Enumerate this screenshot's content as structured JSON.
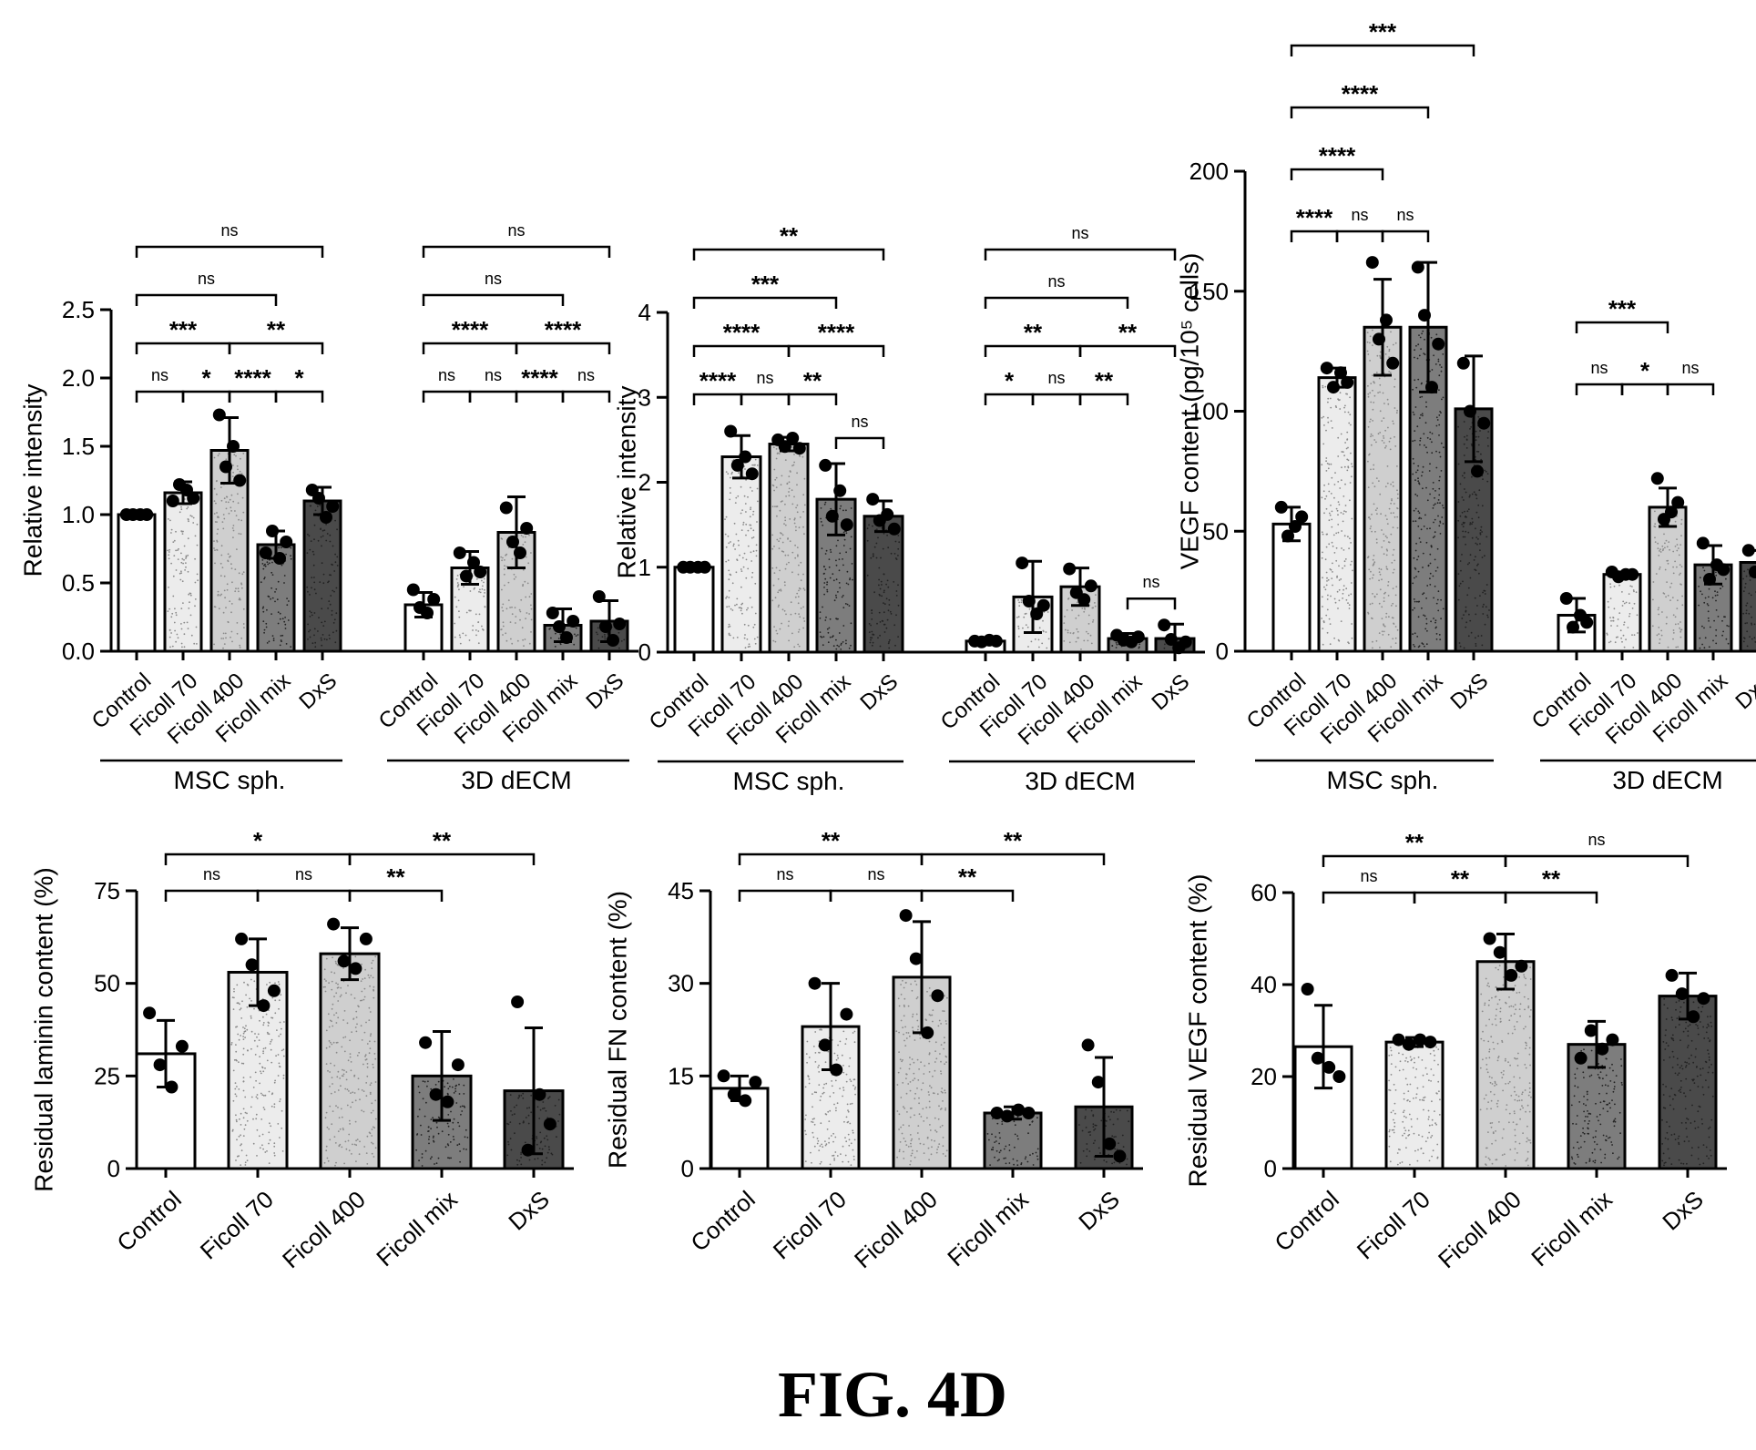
{
  "figure_label": "FIG. 4D",
  "colors": {
    "Control": "#ffffff",
    "Ficoll 70": "#ececec",
    "Ficoll 400": "#cfcfcf",
    "Ficoll mix": "#7d7d7d",
    "DxS": "#4a4a4a",
    "stroke": "#000000"
  },
  "chart_data": [
    {
      "type": "bar",
      "ylabel": "Relative intensity",
      "ylim": [
        0,
        2.5
      ],
      "yticks": [
        "0.0",
        "0.5",
        "1.0",
        "1.5",
        "2.0",
        "2.5"
      ],
      "groups": [
        {
          "label": "MSC sph.",
          "categories": [
            "Control",
            "Ficoll 70",
            "Ficoll 400",
            "Ficoll mix",
            "DxS"
          ],
          "values": [
            1.0,
            1.16,
            1.47,
            0.78,
            1.1
          ],
          "errors": [
            0.0,
            0.08,
            0.24,
            0.1,
            0.1
          ],
          "points": [
            [
              1.0,
              1.0,
              1.0,
              1.0
            ],
            [
              1.1,
              1.22,
              1.18,
              1.12
            ],
            [
              1.73,
              1.35,
              1.5,
              1.25
            ],
            [
              0.72,
              0.88,
              0.68,
              0.8
            ],
            [
              1.18,
              1.12,
              0.98,
              1.06
            ]
          ]
        },
        {
          "label": "3D dECM",
          "categories": [
            "Control",
            "Ficoll 70",
            "Ficoll 400",
            "Ficoll mix",
            "DxS"
          ],
          "values": [
            0.34,
            0.61,
            0.87,
            0.19,
            0.22
          ],
          "errors": [
            0.09,
            0.12,
            0.26,
            0.12,
            0.15
          ],
          "points": [
            [
              0.45,
              0.32,
              0.28,
              0.38
            ],
            [
              0.72,
              0.55,
              0.65,
              0.58
            ],
            [
              1.05,
              0.8,
              0.72,
              0.9
            ],
            [
              0.28,
              0.18,
              0.1,
              0.22
            ],
            [
              0.4,
              0.18,
              0.08,
              0.2
            ]
          ]
        }
      ],
      "brackets": [
        {
          "from": 0,
          "to": 1,
          "label": "ns",
          "level": 0
        },
        {
          "from": 1,
          "to": 2,
          "label": "*",
          "level": 0
        },
        {
          "from": 2,
          "to": 3,
          "label": "****",
          "level": 0
        },
        {
          "from": 3,
          "to": 4,
          "label": "*",
          "level": 0
        },
        {
          "from": 0,
          "to": 2,
          "label": "***",
          "level": 1
        },
        {
          "from": 2,
          "to": 4,
          "label": "**",
          "level": 1
        },
        {
          "from": 0,
          "to": 3,
          "label": "ns",
          "level": 2
        },
        {
          "from": 0,
          "to": 4,
          "label": "ns",
          "level": 3
        },
        {
          "from": 5,
          "to": 6,
          "label": "ns",
          "level": 0
        },
        {
          "from": 6,
          "to": 7,
          "label": "ns",
          "level": 0
        },
        {
          "from": 7,
          "to": 8,
          "label": "****",
          "level": 0
        },
        {
          "from": 8,
          "to": 9,
          "label": "ns",
          "level": 0
        },
        {
          "from": 5,
          "to": 7,
          "label": "****",
          "level": 1
        },
        {
          "from": 7,
          "to": 9,
          "label": "****",
          "level": 1
        },
        {
          "from": 5,
          "to": 8,
          "label": "ns",
          "level": 2
        },
        {
          "from": 5,
          "to": 9,
          "label": "ns",
          "level": 3
        }
      ]
    },
    {
      "type": "bar",
      "ylabel": "Relative intensity",
      "ylim": [
        0,
        4
      ],
      "yticks": [
        "0",
        "1",
        "2",
        "3",
        "4"
      ],
      "groups": [
        {
          "label": "MSC sph.",
          "categories": [
            "Control",
            "Ficoll 70",
            "Ficoll 400",
            "Ficoll mix",
            "DxS"
          ],
          "values": [
            1.0,
            2.3,
            2.45,
            1.8,
            1.6
          ],
          "errors": [
            0.0,
            0.25,
            0.08,
            0.42,
            0.18
          ],
          "points": [
            [
              1.0,
              1.0,
              1.0,
              1.0
            ],
            [
              2.6,
              2.2,
              2.3,
              2.1
            ],
            [
              2.5,
              2.42,
              2.52,
              2.4
            ],
            [
              2.2,
              1.6,
              1.9,
              1.5
            ],
            [
              1.8,
              1.55,
              1.62,
              1.45
            ]
          ]
        },
        {
          "label": "3D dECM",
          "categories": [
            "Control",
            "Ficoll 70",
            "Ficoll 400",
            "Ficoll mix",
            "DxS"
          ],
          "values": [
            0.13,
            0.65,
            0.77,
            0.16,
            0.16
          ],
          "errors": [
            0.02,
            0.42,
            0.22,
            0.06,
            0.17
          ],
          "points": [
            [
              0.13,
              0.12,
              0.14,
              0.13
            ],
            [
              1.05,
              0.6,
              0.45,
              0.55
            ],
            [
              0.98,
              0.7,
              0.62,
              0.78
            ],
            [
              0.2,
              0.14,
              0.12,
              0.18
            ],
            [
              0.32,
              0.15,
              0.05,
              0.12
            ]
          ]
        }
      ],
      "brackets": [
        {
          "from": 0,
          "to": 1,
          "label": "****",
          "level": 0
        },
        {
          "from": 1,
          "to": 2,
          "label": "ns",
          "level": 0
        },
        {
          "from": 2,
          "to": 3,
          "label": "**",
          "level": 0
        },
        {
          "from": 3,
          "to": 4,
          "label": "ns",
          "level": -1
        },
        {
          "from": 0,
          "to": 2,
          "label": "****",
          "level": 1
        },
        {
          "from": 2,
          "to": 4,
          "label": "****",
          "level": 1
        },
        {
          "from": 0,
          "to": 3,
          "label": "***",
          "level": 2
        },
        {
          "from": 0,
          "to": 4,
          "label": "**",
          "level": 3
        },
        {
          "from": 5,
          "to": 6,
          "label": "*",
          "level": 0
        },
        {
          "from": 6,
          "to": 7,
          "label": "ns",
          "level": 0
        },
        {
          "from": 7,
          "to": 8,
          "label": "**",
          "level": 0
        },
        {
          "from": 8,
          "to": 9,
          "label": "ns",
          "level": -1
        },
        {
          "from": 5,
          "to": 7,
          "label": "**",
          "level": 1
        },
        {
          "from": 7,
          "to": 9,
          "label": "**",
          "level": 1
        },
        {
          "from": 5,
          "to": 8,
          "label": "ns",
          "level": 2
        },
        {
          "from": 5,
          "to": 9,
          "label": "ns",
          "level": 3
        }
      ]
    },
    {
      "type": "bar",
      "ylabel": "VEGF content (pg/10⁵ cells)",
      "ylim": [
        0,
        200
      ],
      "yticks": [
        "0",
        "50",
        "100",
        "150",
        "200"
      ],
      "groups": [
        {
          "label": "MSC sph.",
          "categories": [
            "Control",
            "Ficoll 70",
            "Ficoll 400",
            "Ficoll mix",
            "DxS"
          ],
          "values": [
            53,
            114,
            135,
            135,
            101
          ],
          "errors": [
            7,
            4,
            20,
            27,
            22
          ],
          "points": [
            [
              60,
              48,
              52,
              56
            ],
            [
              118,
              110,
              116,
              112
            ],
            [
              162,
              130,
              138,
              120
            ],
            [
              160,
              140,
              110,
              128
            ],
            [
              120,
              100,
              75,
              95
            ]
          ]
        },
        {
          "label": "3D dECM",
          "categories": [
            "Control",
            "Ficoll 70",
            "Ficoll 400",
            "Ficoll mix",
            "DxS"
          ],
          "values": [
            15,
            32,
            60,
            36,
            37
          ],
          "errors": [
            7,
            1,
            8,
            8,
            5
          ],
          "points": [
            [
              22,
              10,
              15,
              12
            ],
            [
              33,
              31,
              32,
              32
            ],
            [
              72,
              55,
              58,
              62
            ],
            [
              45,
              30,
              36,
              34
            ],
            [
              42,
              33,
              38,
              36
            ]
          ]
        }
      ],
      "brackets": [
        {
          "from": 0,
          "to": 1,
          "label": "****",
          "level": 0
        },
        {
          "from": 1,
          "to": 2,
          "label": "ns",
          "level": 0
        },
        {
          "from": 2,
          "to": 3,
          "label": "ns",
          "level": 0
        },
        {
          "from": 0,
          "to": 2,
          "label": "****",
          "level": 1
        },
        {
          "from": 0,
          "to": 3,
          "label": "****",
          "level": 2
        },
        {
          "from": 0,
          "to": 4,
          "label": "***",
          "level": 3
        },
        {
          "from": 5,
          "to": 6,
          "label": "ns",
          "level": 0
        },
        {
          "from": 6,
          "to": 7,
          "label": "*",
          "level": 0
        },
        {
          "from": 7,
          "to": 8,
          "label": "ns",
          "level": 0
        },
        {
          "from": 5,
          "to": 7,
          "label": "***",
          "level": 1
        }
      ]
    },
    {
      "type": "bar",
      "ylabel": "Residual laminin content (%)",
      "ylim": [
        0,
        75
      ],
      "yticks": [
        "0",
        "25",
        "50",
        "75"
      ],
      "groups": [
        {
          "label": "",
          "categories": [
            "Control",
            "Ficoll 70",
            "Ficoll 400",
            "Ficoll mix",
            "DxS"
          ],
          "values": [
            31,
            53,
            58,
            25,
            21
          ],
          "errors": [
            9,
            9,
            7,
            12,
            17
          ],
          "points": [
            [
              42,
              28,
              22,
              33
            ],
            [
              62,
              55,
              44,
              48
            ],
            [
              66,
              56,
              54,
              62
            ],
            [
              34,
              20,
              18,
              28
            ],
            [
              45,
              5,
              20,
              12
            ]
          ]
        }
      ],
      "brackets": [
        {
          "from": 0,
          "to": 1,
          "label": "ns",
          "level": 0
        },
        {
          "from": 1,
          "to": 2,
          "label": "ns",
          "level": 0
        },
        {
          "from": 2,
          "to": 3,
          "label": "**",
          "level": 0
        },
        {
          "from": 0,
          "to": 2,
          "label": "*",
          "level": 1
        },
        {
          "from": 2,
          "to": 4,
          "label": "**",
          "level": 1
        }
      ]
    },
    {
      "type": "bar",
      "ylabel": "Residual FN content (%)",
      "ylim": [
        0,
        45
      ],
      "yticks": [
        "0",
        "15",
        "30",
        "45"
      ],
      "groups": [
        {
          "label": "",
          "categories": [
            "Control",
            "Ficoll 70",
            "Ficoll 400",
            "Ficoll mix",
            "DxS"
          ],
          "values": [
            13,
            23,
            31,
            9,
            10
          ],
          "errors": [
            2,
            7,
            9,
            1,
            8
          ],
          "points": [
            [
              15,
              12,
              11,
              14
            ],
            [
              30,
              20,
              16,
              25
            ],
            [
              41,
              34,
              22,
              28
            ],
            [
              9,
              8.5,
              9.5,
              9
            ],
            [
              20,
              14,
              4,
              2
            ]
          ]
        }
      ],
      "brackets": [
        {
          "from": 0,
          "to": 1,
          "label": "ns",
          "level": 0
        },
        {
          "from": 1,
          "to": 2,
          "label": "ns",
          "level": 0
        },
        {
          "from": 2,
          "to": 3,
          "label": "**",
          "level": 0
        },
        {
          "from": 0,
          "to": 2,
          "label": "**",
          "level": 1
        },
        {
          "from": 2,
          "to": 4,
          "label": "**",
          "level": 1
        }
      ]
    },
    {
      "type": "bar",
      "ylabel": "Residual VEGF content (%)",
      "ylim": [
        0,
        60
      ],
      "yticks": [
        "0",
        "20",
        "40",
        "60"
      ],
      "groups": [
        {
          "label": "",
          "categories": [
            "Control",
            "Ficoll 70",
            "Ficoll 400",
            "Ficoll mix",
            "DxS"
          ],
          "values": [
            26.5,
            27.5,
            45,
            27,
            37.5
          ],
          "errors": [
            9,
            1,
            6,
            5,
            5
          ],
          "points": [
            [
              39,
              24,
              22,
              20
            ],
            [
              28,
              27,
              28,
              27.5
            ],
            [
              50,
              47,
              42,
              44
            ],
            [
              24,
              30,
              26,
              28
            ],
            [
              42,
              38,
              33,
              37
            ]
          ]
        }
      ],
      "brackets": [
        {
          "from": 0,
          "to": 1,
          "label": "ns",
          "level": 0
        },
        {
          "from": 1,
          "to": 2,
          "label": "**",
          "level": 0
        },
        {
          "from": 2,
          "to": 3,
          "label": "**",
          "level": 0
        },
        {
          "from": 0,
          "to": 2,
          "label": "**",
          "level": 1
        },
        {
          "from": 2,
          "to": 4,
          "label": "ns",
          "level": 1
        }
      ]
    }
  ]
}
